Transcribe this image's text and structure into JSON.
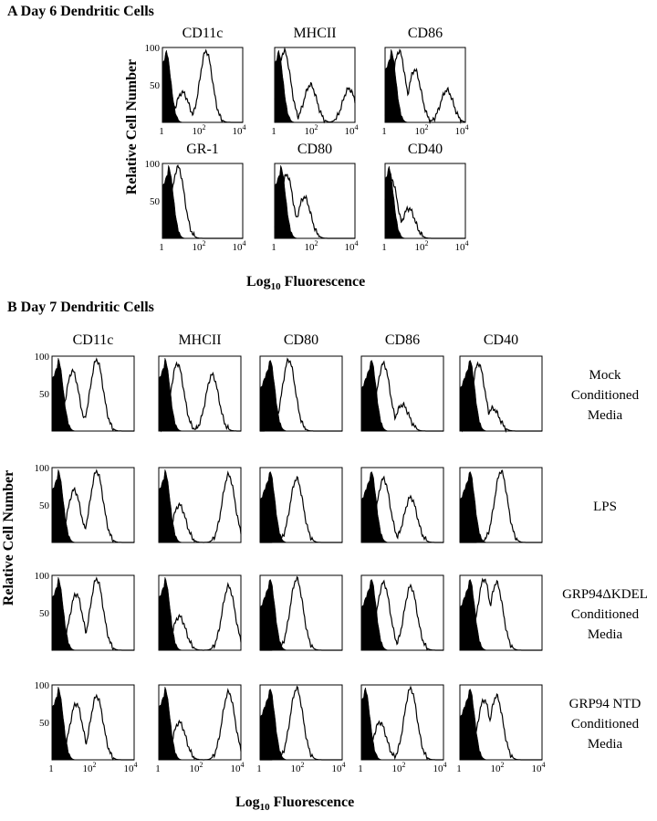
{
  "panel_a": {
    "title": "A  Day 6 Dendritic Cells",
    "ylabel": "Relative Cell Number",
    "xlabel_base": "Log",
    "xlabel_sub": "10",
    "xlabel_rest": " Fluorescence"
  },
  "panel_b": {
    "title": "B   Day 7 Dendritic Cells",
    "ylabel": "Relative Cell Number",
    "xlabel_base": "Log",
    "xlabel_sub": "10",
    "xlabel_rest": " Fluorescence",
    "markers": [
      "CD11c",
      "MHCII",
      "CD80",
      "CD86",
      "CD40"
    ],
    "conditions": [
      {
        "lines": [
          "Mock",
          "Conditioned",
          "Media"
        ]
      },
      {
        "lines": [
          "LPS"
        ]
      },
      {
        "lines": [
          "GRP94ΔKDEL",
          "Conditioned",
          "Media"
        ]
      },
      {
        "lines": [
          "GRP94 NTD",
          "Conditioned",
          "Media"
        ]
      }
    ]
  },
  "chart_data": [
    {
      "type": "area",
      "panel": "A",
      "title": "Day 6 Dendritic Cells",
      "xlabel": "Log10 Fluorescence",
      "ylabel": "Relative Cell Number",
      "x_scale": "log",
      "x_ticks": [
        "1",
        "10²",
        "10⁴"
      ],
      "y_ticks": [
        "50",
        "100"
      ],
      "ylim": [
        0,
        100
      ],
      "plots": [
        {
          "marker": "CD11c",
          "control_peak_x": 1.5,
          "stained_peaks": [
            {
              "x": 150,
              "y": 95
            },
            {
              "x": 10,
              "y": 40
            }
          ]
        },
        {
          "marker": "MHCII",
          "control_peak_x": 1.5,
          "stained_peaks": [
            {
              "x": 3,
              "y": 95
            },
            {
              "x": 60,
              "y": 50
            },
            {
              "x": 5000,
              "y": 45
            }
          ]
        },
        {
          "marker": "CD86",
          "control_peak_x": 2,
          "stained_peaks": [
            {
              "x": 5,
              "y": 95
            },
            {
              "x": 30,
              "y": 70
            },
            {
              "x": 1200,
              "y": 43
            }
          ]
        },
        {
          "marker": "GR-1",
          "control_peak_x": 2,
          "stained_peaks": [
            {
              "x": 6,
              "y": 95
            }
          ]
        },
        {
          "marker": "CD80",
          "control_peak_x": 2,
          "stained_peaks": [
            {
              "x": 4,
              "y": 85
            },
            {
              "x": 30,
              "y": 55
            }
          ]
        },
        {
          "marker": "CD40",
          "control_peak_x": 1.5,
          "stained_peaks": [
            {
              "x": 2,
              "y": 80
            },
            {
              "x": 15,
              "y": 40
            }
          ]
        }
      ]
    },
    {
      "type": "area",
      "panel": "B",
      "title": "Day 7 Dendritic Cells",
      "xlabel": "Log10 Fluorescence",
      "ylabel": "Relative Cell Number",
      "x_scale": "log",
      "x_ticks": [
        "1",
        "10²",
        "10⁴"
      ],
      "y_ticks": [
        "50",
        "100"
      ],
      "ylim": [
        0,
        100
      ],
      "rows": [
        {
          "condition": "Mock Conditioned Media",
          "stained_peaks": {
            "CD11c": [
              {
                "x": 10,
                "y": 80
              },
              {
                "x": 150,
                "y": 95
              }
            ],
            "MHCII": [
              {
                "x": 8,
                "y": 90
              },
              {
                "x": 400,
                "y": 75
              }
            ],
            "CD80": [
              {
                "x": 25,
                "y": 95
              }
            ],
            "CD86": [
              {
                "x": 12,
                "y": 90
              },
              {
                "x": 100,
                "y": 35
              }
            ],
            "CD40": [
              {
                "x": 8,
                "y": 90
              },
              {
                "x": 40,
                "y": 30
              }
            ]
          }
        },
        {
          "condition": "LPS",
          "stained_peaks": {
            "CD11c": [
              {
                "x": 12,
                "y": 70
              },
              {
                "x": 150,
                "y": 95
              }
            ],
            "MHCII": [
              {
                "x": 10,
                "y": 50
              },
              {
                "x": 2500,
                "y": 90
              }
            ],
            "CD80": [
              {
                "x": 60,
                "y": 85
              }
            ],
            "CD86": [
              {
                "x": 12,
                "y": 85
              },
              {
                "x": 250,
                "y": 60
              }
            ],
            "CD40": [
              {
                "x": 100,
                "y": 95
              }
            ]
          }
        },
        {
          "condition": "GRP94ΔKDEL Conditioned Media",
          "stained_peaks": {
            "CD11c": [
              {
                "x": 15,
                "y": 75
              },
              {
                "x": 150,
                "y": 95
              }
            ],
            "MHCII": [
              {
                "x": 10,
                "y": 45
              },
              {
                "x": 2500,
                "y": 85
              }
            ],
            "CD80": [
              {
                "x": 60,
                "y": 95
              }
            ],
            "CD86": [
              {
                "x": 12,
                "y": 90
              },
              {
                "x": 250,
                "y": 85
              }
            ],
            "CD40": [
              {
                "x": 15,
                "y": 95
              },
              {
                "x": 60,
                "y": 90
              }
            ]
          }
        },
        {
          "condition": "GRP94 NTD Conditioned Media",
          "stained_peaks": {
            "CD11c": [
              {
                "x": 15,
                "y": 75
              },
              {
                "x": 150,
                "y": 85
              }
            ],
            "MHCII": [
              {
                "x": 10,
                "y": 50
              },
              {
                "x": 2500,
                "y": 90
              }
            ],
            "CD80": [
              {
                "x": 60,
                "y": 95
              }
            ],
            "CD86": [
              {
                "x": 8,
                "y": 50
              },
              {
                "x": 250,
                "y": 95
              }
            ],
            "CD40": [
              {
                "x": 15,
                "y": 80
              },
              {
                "x": 60,
                "y": 85
              }
            ]
          }
        }
      ]
    }
  ]
}
